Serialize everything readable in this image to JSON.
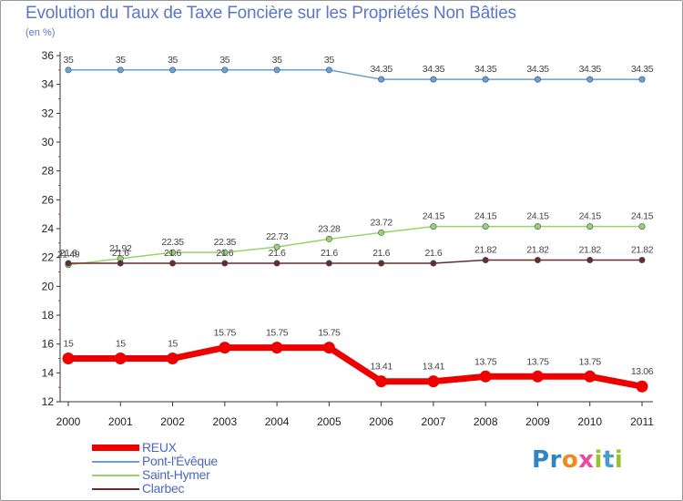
{
  "header": {
    "title": "Evolution du Taux de Taxe Foncière sur les Propriétés Non Bâties",
    "unit": "(en %)"
  },
  "brand": {
    "letters": [
      {
        "char": "P",
        "color": "#2f84c4"
      },
      {
        "char": "r",
        "color": "#2f84c4"
      },
      {
        "char": "o",
        "color": "#f08a1c"
      },
      {
        "char": "x",
        "color": "#ea4aa0"
      },
      {
        "char": "i",
        "color": "#9ac22b"
      },
      {
        "char": "t",
        "color": "#4a9ad6"
      },
      {
        "char": "i",
        "color": "#9ac22b"
      }
    ]
  },
  "chart_data": {
    "type": "line",
    "title": "Evolution du Taux de Taxe Foncière sur les Propriétés Non Bâties",
    "ylabel": "(en %)",
    "xlabel": "",
    "categories": [
      "2000",
      "2001",
      "2002",
      "2003",
      "2004",
      "2005",
      "2006",
      "2007",
      "2008",
      "2009",
      "2010",
      "2011"
    ],
    "ylim": [
      12,
      36
    ],
    "yticks": [
      "12",
      "14",
      "16",
      "18",
      "20",
      "22",
      "24",
      "26",
      "28",
      "30",
      "32",
      "34",
      "36"
    ],
    "grid": false,
    "legend_position": "bottom-left",
    "series": [
      {
        "name": "REUX",
        "color": "#ee0000",
        "values": [
          15,
          15,
          15,
          15.75,
          15.75,
          15.75,
          13.41,
          13.41,
          13.75,
          13.75,
          13.75,
          13.06
        ],
        "labels": [
          "15",
          "15",
          "15",
          "15.75",
          "15.75",
          "15.75",
          "13.41",
          "13.41",
          "13.75",
          "13.75",
          "13.75",
          "13.06"
        ]
      },
      {
        "name": "Pont-l'Évêque",
        "color": "#6b9fd1",
        "values": [
          35,
          35,
          35,
          35,
          35,
          35,
          34.35,
          34.35,
          34.35,
          34.35,
          34.35,
          34.35
        ],
        "labels": [
          "35",
          "35",
          "35",
          "35",
          "35",
          "35",
          "34.35",
          "34.35",
          "34.35",
          "34.35",
          "34.35",
          "34.35"
        ]
      },
      {
        "name": "Saint-Hymer",
        "color": "#9ad26b",
        "values": [
          21.49,
          21.92,
          22.35,
          22.35,
          22.73,
          23.28,
          23.72,
          24.15,
          24.15,
          24.15,
          24.15,
          24.15
        ],
        "labels": [
          "21.49",
          "21.92",
          "22.35",
          "22.35",
          "22.73",
          "23.28",
          "23.72",
          "24.15",
          "24.15",
          "24.15",
          "24.15",
          "24.15"
        ]
      },
      {
        "name": "Clarbec",
        "color": "#6b2a2a",
        "values": [
          21.6,
          21.6,
          21.6,
          21.6,
          21.6,
          21.6,
          21.6,
          21.6,
          21.82,
          21.82,
          21.82,
          21.82
        ],
        "labels": [
          "21.6",
          "21.6",
          "21.6",
          "21.6",
          "21.6",
          "21.6",
          "21.6",
          "21.6",
          "21.82",
          "21.82",
          "21.82",
          "21.82"
        ]
      }
    ]
  }
}
